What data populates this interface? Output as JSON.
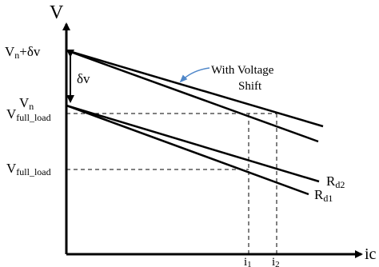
{
  "labels": {
    "y_axis": "V",
    "x_axis": "ic",
    "v_n_plus_dv": "Vn+δv",
    "v_n": "Vn",
    "v_full_load_1": "Vfull_load",
    "v_full_load_2": "Vfull_load",
    "delta_v": "δv",
    "annotation_line1": "With Voltage",
    "annotation_line2": "Shift",
    "r_d2": "Rd2",
    "r_d1": "Rd1",
    "i1": "i1",
    "i2": "i2"
  },
  "colors": {
    "lines": "#000000",
    "annotation_arrow": "#4f87c9"
  }
}
